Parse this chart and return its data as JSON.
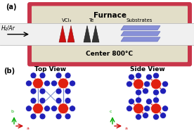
{
  "fig_width": 2.76,
  "fig_height": 1.89,
  "dpi": 100,
  "bg_color": "#ffffff",
  "panel_a": {
    "label": "(a)",
    "furnace_label": "Furnace",
    "center_label": "Center 800°C",
    "gas_label": "H₂/Ar",
    "vcl3_label": "VCl₃",
    "te_label": "Te",
    "substrates_label": "Substrates",
    "furnace_outer_color": "#c8354a",
    "furnace_inner_color": "#e2dec8",
    "tube_color": "#eeeeee",
    "substrate_color": "#8890d8"
  },
  "panel_b": {
    "label": "(b)",
    "top_view_label": "Top View",
    "side_view_label": "Side View",
    "v_atom_color": "#e02010",
    "te_atom_color": "#2020b8",
    "bond_color": "#d02010",
    "unit_cell_color": "#7788cc"
  }
}
